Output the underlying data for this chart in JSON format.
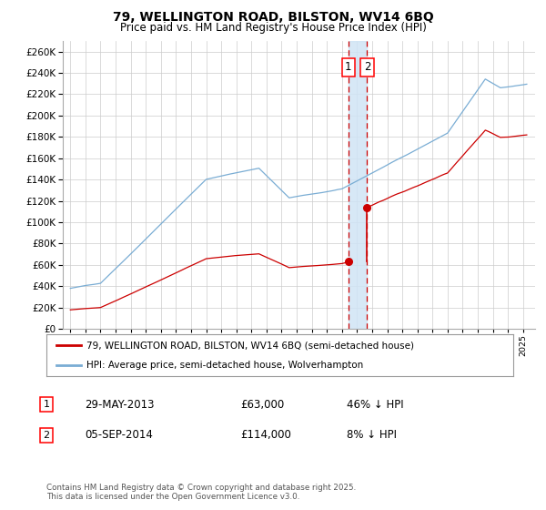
{
  "title": "79, WELLINGTON ROAD, BILSTON, WV14 6BQ",
  "subtitle": "Price paid vs. HM Land Registry's House Price Index (HPI)",
  "legend_line1": "79, WELLINGTON ROAD, BILSTON, WV14 6BQ (semi-detached house)",
  "legend_line2": "HPI: Average price, semi-detached house, Wolverhampton",
  "table_rows": [
    {
      "num": 1,
      "date": "29-MAY-2013",
      "price": "£63,000",
      "hpi_diff": "46% ↓ HPI"
    },
    {
      "num": 2,
      "date": "05-SEP-2014",
      "price": "£114,000",
      "hpi_diff": "8% ↓ HPI"
    }
  ],
  "footnote": "Contains HM Land Registry data © Crown copyright and database right 2025.\nThis data is licensed under the Open Government Licence v3.0.",
  "sale1_date": 2013.41,
  "sale1_price": 63000,
  "sale2_date": 2014.67,
  "sale2_price": 114000,
  "red_color": "#cc0000",
  "blue_color": "#7aadd4",
  "shading_color": "#d0e4f5",
  "dashed_color": "#cc0000",
  "ylim_min": 0,
  "ylim_max": 270000,
  "xlim_min": 1994.5,
  "xlim_max": 2025.8,
  "background_color": "#ffffff",
  "grid_color": "#cccccc",
  "yticks": [
    0,
    20000,
    40000,
    60000,
    80000,
    100000,
    120000,
    140000,
    160000,
    180000,
    200000,
    220000,
    240000,
    260000
  ],
  "xticks_start": 1995,
  "xticks_end": 2025
}
